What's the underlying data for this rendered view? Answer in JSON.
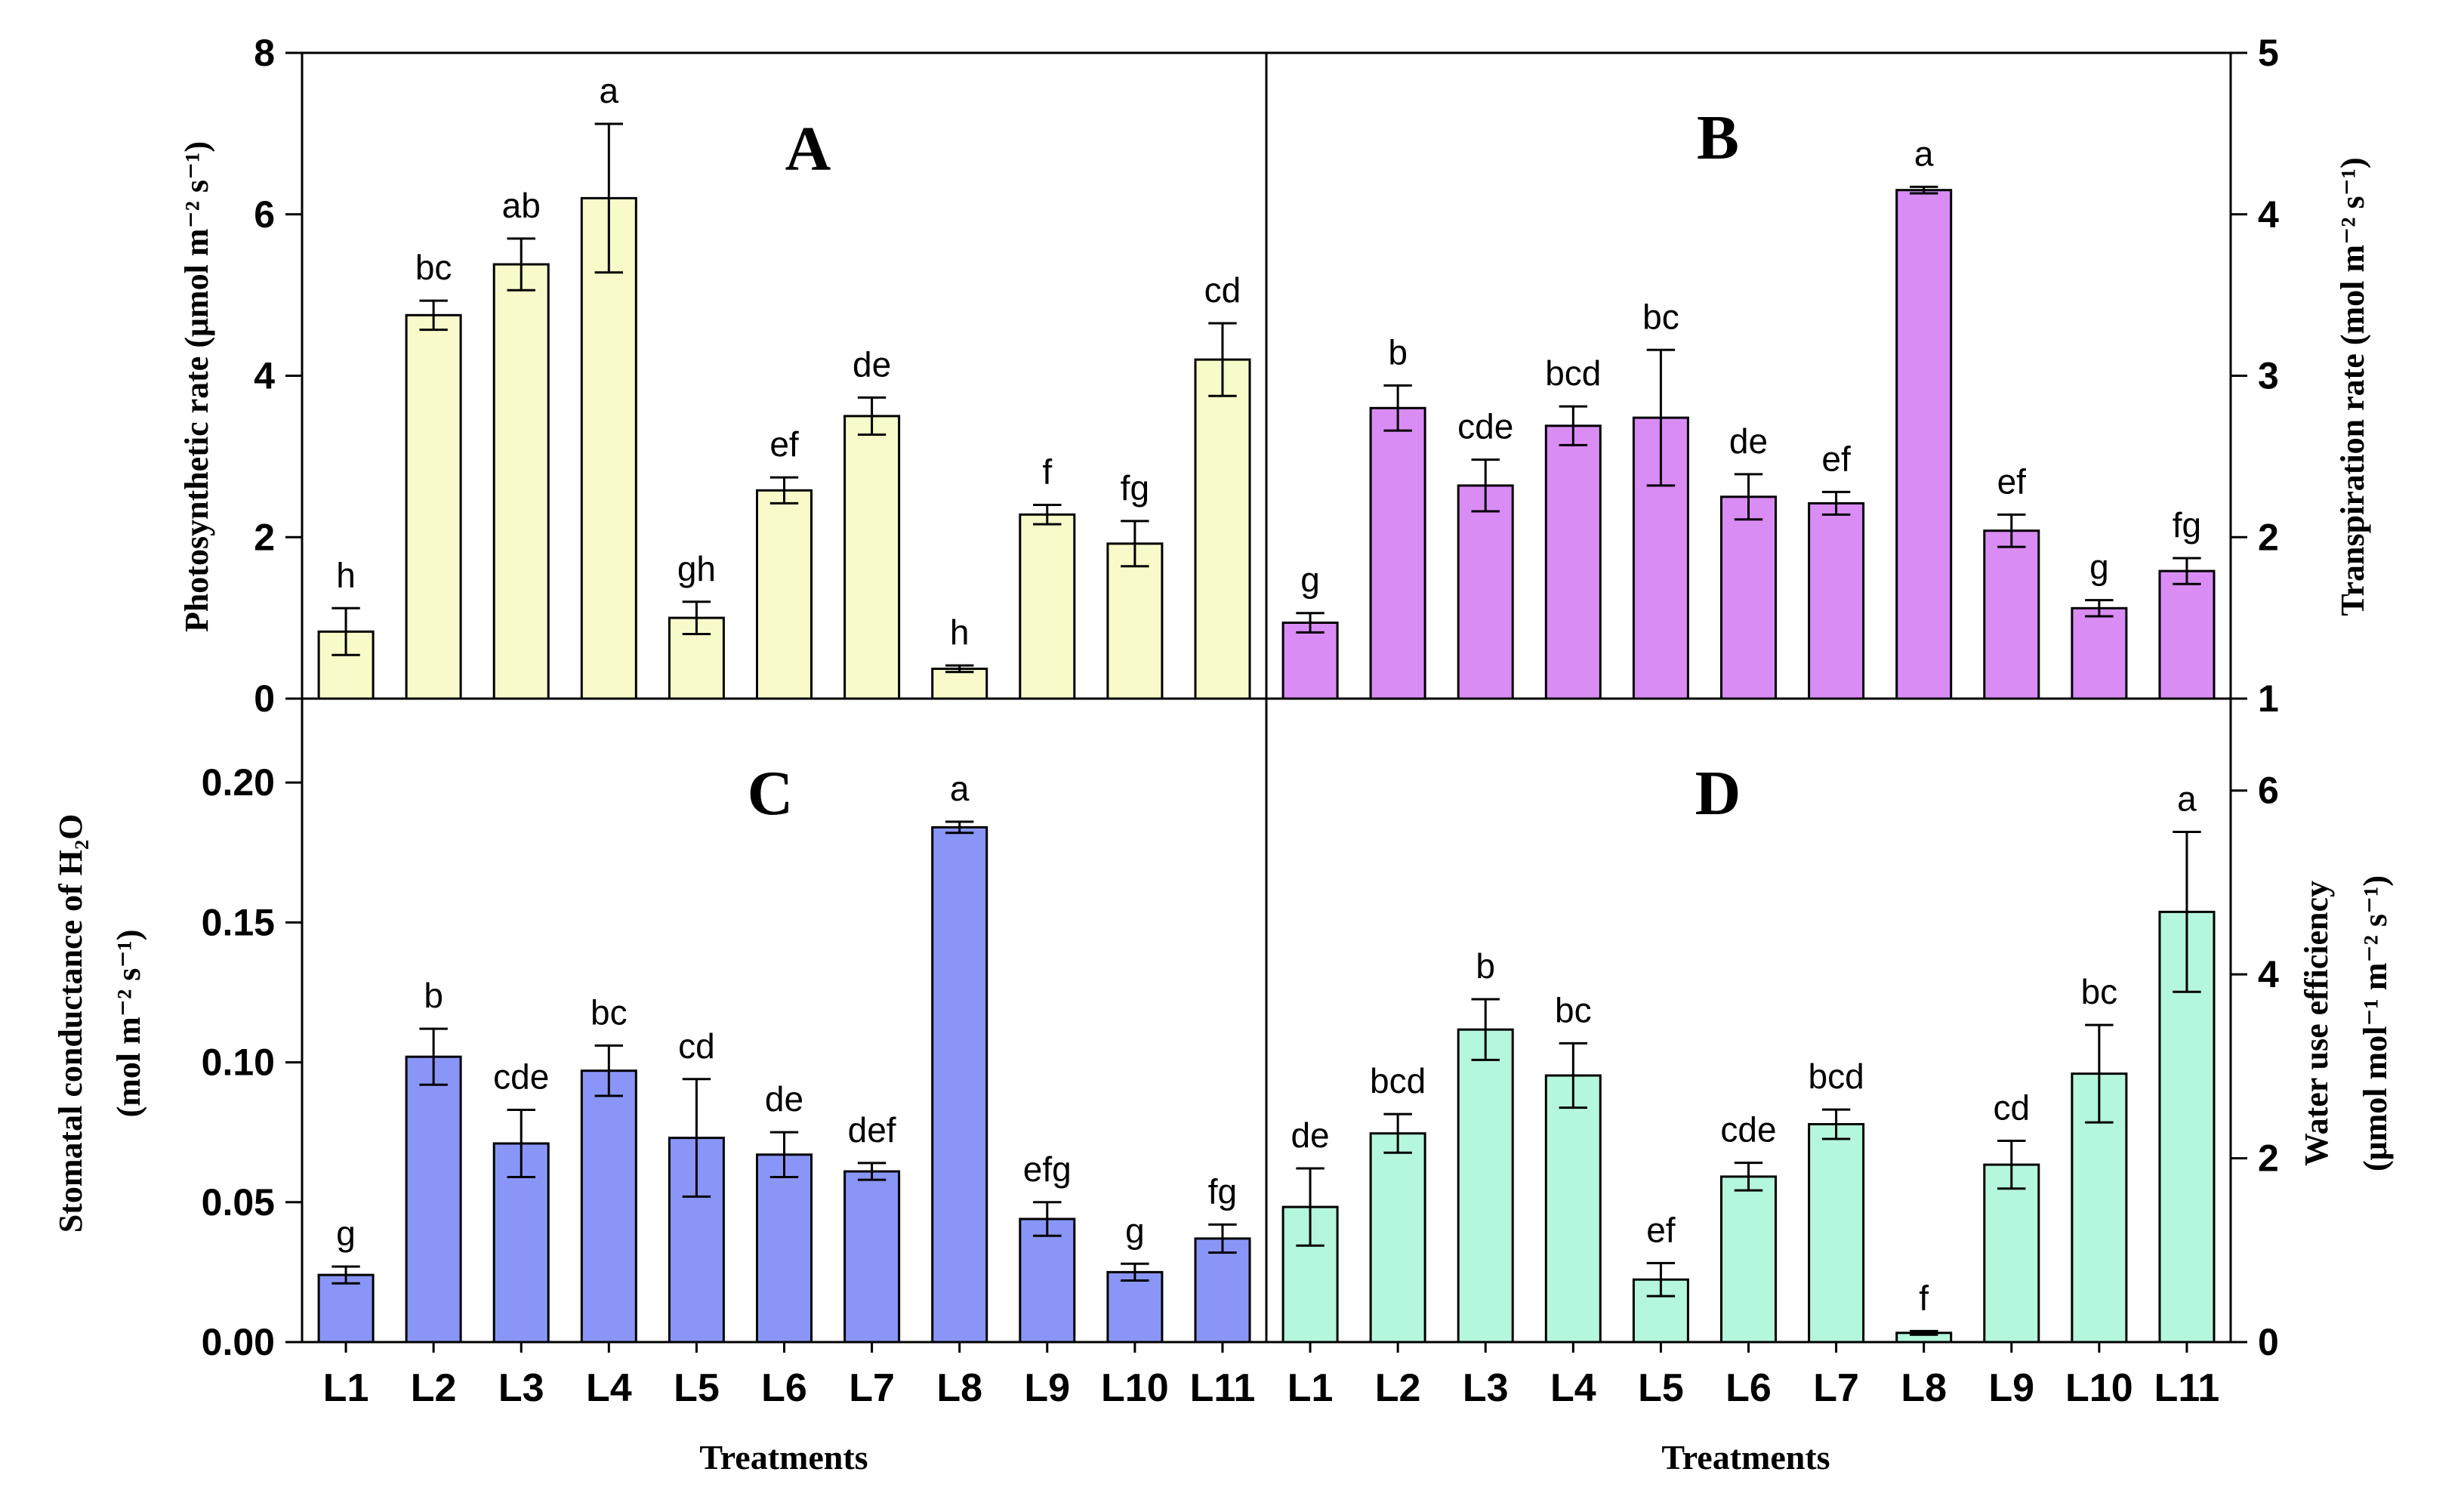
{
  "chart_data": [
    {
      "panel": "A",
      "type": "bar",
      "categories": [
        "L1",
        "L2",
        "L3",
        "L4",
        "L5",
        "L6",
        "L7",
        "L8",
        "L9",
        "L10",
        "L11"
      ],
      "values": [
        0.83,
        4.75,
        5.38,
        6.2,
        1.0,
        2.58,
        3.5,
        0.37,
        2.28,
        1.92,
        4.2
      ],
      "errors": [
        0.29,
        0.18,
        0.32,
        0.92,
        0.2,
        0.16,
        0.23,
        0.04,
        0.12,
        0.28,
        0.45
      ],
      "significance": [
        "h",
        "bc",
        "ab",
        "a",
        "gh",
        "ef",
        "de",
        "h",
        "f",
        "fg",
        "cd"
      ],
      "ylabel": "Photosynthetic rate (μmol m⁻² s⁻¹)",
      "ylim": [
        0,
        8
      ],
      "yticks": [
        "0",
        "2",
        "4",
        "6",
        "8"
      ],
      "axis": "left",
      "color": "#f8fbc9"
    },
    {
      "panel": "B",
      "type": "bar",
      "categories": [
        "L1",
        "L2",
        "L3",
        "L4",
        "L5",
        "L6",
        "L7",
        "L8",
        "L9",
        "L10",
        "L11"
      ],
      "values": [
        1.47,
        2.8,
        2.32,
        2.69,
        2.74,
        2.25,
        2.21,
        4.15,
        2.04,
        1.56,
        1.79
      ],
      "errors": [
        0.06,
        0.14,
        0.16,
        0.12,
        0.42,
        0.14,
        0.07,
        0.02,
        0.1,
        0.05,
        0.08
      ],
      "significance": [
        "g",
        "b",
        "cde",
        "bcd",
        "bc",
        "de",
        "ef",
        "a",
        "ef",
        "g",
        "fg"
      ],
      "ylabel": "Transpiration rate (mol m⁻² s⁻¹)",
      "ylim": [
        1,
        5
      ],
      "yticks": [
        "1",
        "2",
        "3",
        "4",
        "5"
      ],
      "axis": "right",
      "color": "#da8cf5"
    },
    {
      "panel": "C",
      "type": "bar",
      "categories": [
        "L1",
        "L2",
        "L3",
        "L4",
        "L5",
        "L6",
        "L7",
        "L8",
        "L9",
        "L10",
        "L11"
      ],
      "values": [
        0.024,
        0.102,
        0.071,
        0.097,
        0.073,
        0.067,
        0.061,
        0.184,
        0.044,
        0.025,
        0.037
      ],
      "errors": [
        0.003,
        0.01,
        0.012,
        0.009,
        0.021,
        0.008,
        0.003,
        0.002,
        0.006,
        0.003,
        0.005
      ],
      "significance": [
        "g",
        "b",
        "cde",
        "bc",
        "cd",
        "de",
        "def",
        "a",
        "efg",
        "g",
        "fg"
      ],
      "ylabel_line1": "Stomatal conductance of H₂O",
      "ylabel_line2": "(mol m⁻² s⁻¹)",
      "ylim": [
        0,
        0.23
      ],
      "yticks": [
        "0.00",
        "0.05",
        "0.10",
        "0.15",
        "0.20"
      ],
      "xlabel": "Treatments",
      "axis": "left",
      "color": "#8a96f7"
    },
    {
      "panel": "D",
      "type": "bar",
      "categories": [
        "L1",
        "L2",
        "L3",
        "L4",
        "L5",
        "L6",
        "L7",
        "L8",
        "L9",
        "L10",
        "L11"
      ],
      "values": [
        1.47,
        2.27,
        3.4,
        2.9,
        0.68,
        1.8,
        2.37,
        0.1,
        1.93,
        2.92,
        4.68
      ],
      "errors": [
        0.42,
        0.21,
        0.33,
        0.35,
        0.18,
        0.15,
        0.16,
        0.02,
        0.26,
        0.53,
        0.87
      ],
      "significance": [
        "de",
        "bcd",
        "b",
        "bc",
        "ef",
        "cde",
        "bcd",
        "f",
        "cd",
        "bc",
        "a"
      ],
      "ylabel_line1": "Water use efficiency",
      "ylabel_line2": "(μmol mol⁻¹ m⁻² s⁻¹)",
      "ylim": [
        0,
        7
      ],
      "yticks": [
        "0",
        "2",
        "4",
        "6"
      ],
      "xlabel": "Treatments",
      "axis": "right",
      "color": "#b5f7dc"
    }
  ]
}
